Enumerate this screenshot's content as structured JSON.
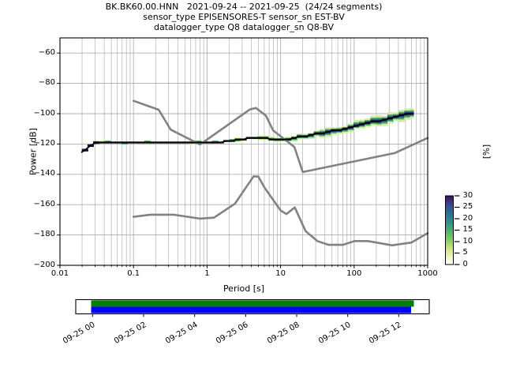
{
  "title": {
    "line1": "BK.BK60.00.HNN   2021-09-24 -- 2021-09-25  (24/24 segments)",
    "line2": "sensor_type EPISENSORES-T sensor_sn EST-BV",
    "line3": "datalogger_type Q8 datalogger_sn Q8-BV"
  },
  "axes": {
    "xlabel": "Period [s]",
    "ylabel": "Power [dB]"
  },
  "colorbar": {
    "label": "[%]",
    "tick_labels": [
      "30",
      "25",
      "20",
      "15",
      "10",
      "5",
      "0"
    ],
    "tick_values": [
      30,
      25,
      20,
      15,
      10,
      5,
      0
    ],
    "gradient_bottom_to_top": [
      [
        0.0,
        "#ffffff"
      ],
      [
        0.13,
        "#e9f2b9"
      ],
      [
        0.25,
        "#bfe27f"
      ],
      [
        0.37,
        "#83c867"
      ],
      [
        0.5,
        "#46b273"
      ],
      [
        0.62,
        "#27948c"
      ],
      [
        0.75,
        "#2e6e8e"
      ],
      [
        0.86,
        "#3b4d8b"
      ],
      [
        0.94,
        "#422a70"
      ],
      [
        1.0,
        "#3a0d53"
      ]
    ]
  },
  "coverage": {
    "tick_labels": [
      "09-25 00",
      "09-25 02",
      "09-25 04",
      "09-25 06",
      "09-25 08",
      "09-25 10",
      "09-25 12"
    ],
    "data_bar_color": "#008000",
    "segment_bar_color": "#0000ff"
  },
  "chart_data": {
    "type": "heatmap",
    "description": "PPSD probabilistic power spectral density: 2D histogram band with mode line, plus Peterson NHNM/NLNM noise model curves",
    "x": {
      "label": "Period [s]",
      "scale": "log",
      "min": 0.01,
      "max": 1000,
      "ticks": [
        0.01,
        0.1,
        1,
        10,
        100,
        1000
      ],
      "tick_labels": [
        "0.01",
        "0.1",
        "1",
        "10",
        "100",
        "1000"
      ]
    },
    "y": {
      "label": "Power [dB]",
      "min": -200,
      "max": -50,
      "ticks": [
        -60,
        -80,
        -100,
        -120,
        -140,
        -160,
        -180,
        -200
      ],
      "tick_labels": [
        "−60",
        "−80",
        "−100",
        "−120",
        "−140",
        "−160",
        "−180",
        "−200"
      ]
    },
    "colorbar": {
      "label": "[%]",
      "min": 0,
      "max": 30,
      "tick_step": 5
    },
    "grid": true,
    "series": [
      {
        "name": "ppsd_mode",
        "color": "#000000",
        "points": [
          [
            0.0195,
            -125.5
          ],
          [
            0.021,
            -124.8
          ],
          [
            0.024,
            -122.8
          ],
          [
            0.027,
            -120.8
          ],
          [
            0.031,
            -119.5
          ],
          [
            0.04,
            -119.3
          ],
          [
            0.06,
            -119.4
          ],
          [
            0.1,
            -119.4
          ],
          [
            0.2,
            -119.5
          ],
          [
            0.4,
            -119.4
          ],
          [
            0.7,
            -119.3
          ],
          [
            1.0,
            -119.1
          ],
          [
            1.4,
            -118.7
          ],
          [
            2.0,
            -118.0
          ],
          [
            2.6,
            -117.2
          ],
          [
            3.2,
            -116.5
          ],
          [
            4.0,
            -116.0
          ],
          [
            5.0,
            -115.9
          ],
          [
            6.0,
            -116.1
          ],
          [
            7.5,
            -116.5
          ],
          [
            9.0,
            -116.7
          ],
          [
            11,
            -116.7
          ],
          [
            13,
            -116.5
          ],
          [
            15,
            -116.0
          ],
          [
            18,
            -115.2
          ],
          [
            22,
            -114.5
          ],
          [
            27,
            -113.9
          ],
          [
            33,
            -113.3
          ],
          [
            40,
            -112.9
          ],
          [
            48,
            -111.9
          ],
          [
            58,
            -111.0
          ],
          [
            70,
            -110.2
          ],
          [
            85,
            -109.2
          ],
          [
            100,
            -108.3
          ],
          [
            120,
            -107.5
          ],
          [
            145,
            -106.6
          ],
          [
            175,
            -105.7
          ],
          [
            210,
            -104.8
          ],
          [
            255,
            -103.8
          ],
          [
            310,
            -102.8
          ],
          [
            380,
            -101.8
          ],
          [
            460,
            -100.8
          ],
          [
            560,
            -99.9
          ],
          [
            640,
            -99.4
          ]
        ]
      },
      {
        "name": "noise_model_high_NHNM",
        "color": "#828282",
        "points": [
          [
            0.1,
            -91.5
          ],
          [
            0.22,
            -97.4
          ],
          [
            0.32,
            -110.5
          ],
          [
            0.8,
            -120.3
          ],
          [
            3.8,
            -97.3
          ],
          [
            4.6,
            -96.2
          ],
          [
            6.3,
            -101.2
          ],
          [
            7.9,
            -111.0
          ],
          [
            15.4,
            -122.0
          ],
          [
            20,
            -138.5
          ],
          [
            354.8,
            -126.0
          ],
          [
            1000,
            -116.0
          ]
        ]
      },
      {
        "name": "noise_model_low_NLNM",
        "color": "#828282",
        "points": [
          [
            0.1,
            -168.0
          ],
          [
            0.17,
            -166.6
          ],
          [
            0.35,
            -166.6
          ],
          [
            0.8,
            -169.2
          ],
          [
            1.24,
            -168.6
          ],
          [
            2.4,
            -159.3
          ],
          [
            4.3,
            -141.3
          ],
          [
            5,
            -141.5
          ],
          [
            6,
            -148.5
          ],
          [
            10,
            -163.8
          ],
          [
            12,
            -166.2
          ],
          [
            15.6,
            -161.8
          ],
          [
            21.9,
            -177.5
          ],
          [
            31.6,
            -184.0
          ],
          [
            45,
            -186.5
          ],
          [
            70,
            -186.5
          ],
          [
            101,
            -184.0
          ],
          [
            154,
            -184.0
          ],
          [
            328,
            -186.8
          ],
          [
            600,
            -185.0
          ],
          [
            1000,
            -178.8
          ]
        ]
      }
    ],
    "histogram_band": {
      "period_range_s": [
        0.02,
        640
      ],
      "percent_peak": 30,
      "layer_colors": {
        "outer_5pct": "#d5eda6",
        "green_10pct": "#4fae62",
        "teal_18pct": "#2a7f8e",
        "navy_25pct": "#35488c",
        "core_30pct": "#1d1133",
        "start_purple": "#3b1353"
      }
    }
  }
}
